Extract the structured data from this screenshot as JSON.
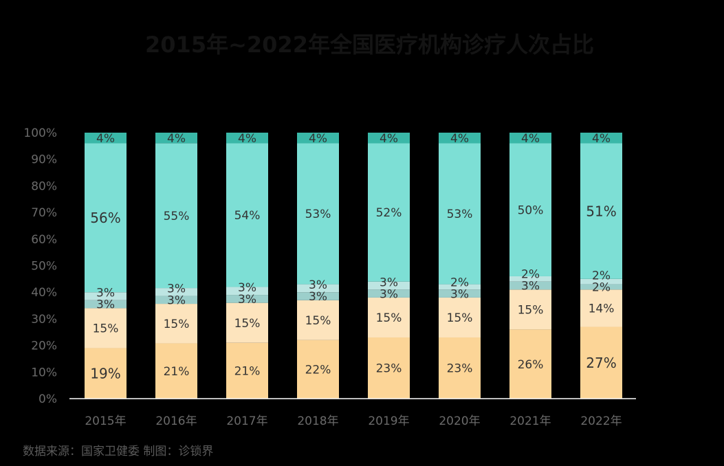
{
  "chart_data": {
    "type": "bar",
    "stacked": true,
    "percent": true,
    "title": "2015年~2022年全国医疗机构诊疗人次占比",
    "categories": [
      "2015年",
      "2016年",
      "2017年",
      "2018年",
      "2019年",
      "2020年",
      "2021年",
      "2022年"
    ],
    "yticks": [
      "0%",
      "10%",
      "20%",
      "30%",
      "40%",
      "50%",
      "60%",
      "70%",
      "80%",
      "90%",
      "100%"
    ],
    "ylim": [
      0,
      100
    ],
    "grid": false,
    "legend": false,
    "series": [
      {
        "color": "#fcd597",
        "values": [
          19,
          21,
          21,
          22,
          23,
          23,
          26,
          27
        ],
        "labels": [
          "19%",
          "21%",
          "21%",
          "22%",
          "23%",
          "23%",
          "26%",
          "27%"
        ]
      },
      {
        "color": "#fde4bd",
        "values": [
          15,
          15,
          15,
          15,
          15,
          15,
          15,
          14
        ],
        "labels": [
          "15%",
          "15%",
          "15%",
          "15%",
          "15%",
          "15%",
          "15%",
          "14%"
        ]
      },
      {
        "color": "#9ccfcb",
        "values": [
          3,
          3,
          3,
          3,
          3,
          3,
          3,
          2
        ],
        "labels": [
          "3%",
          "3%",
          "3%",
          "3%",
          "3%",
          "3%",
          "3%",
          "2%"
        ]
      },
      {
        "color": "#bde5e2",
        "values": [
          3,
          3,
          3,
          3,
          3,
          2,
          2,
          2
        ],
        "labels": [
          "3%",
          "3%",
          "3%",
          "3%",
          "3%",
          "2%",
          "2%",
          "2%"
        ]
      },
      {
        "color": "#7ddfd5",
        "values": [
          56,
          55,
          54,
          53,
          52,
          53,
          50,
          51
        ],
        "labels": [
          "56%",
          "55%",
          "54%",
          "53%",
          "52%",
          "53%",
          "50%",
          "51%"
        ]
      },
      {
        "color": "#3ab8a8",
        "values": [
          4,
          4,
          4,
          4,
          4,
          4,
          4,
          4
        ],
        "labels": [
          "4%",
          "4%",
          "4%",
          "4%",
          "4%",
          "4%",
          "4%",
          "4%"
        ]
      }
    ]
  },
  "source_note": "数据来源：国家卫健委   制图：诊锁界"
}
